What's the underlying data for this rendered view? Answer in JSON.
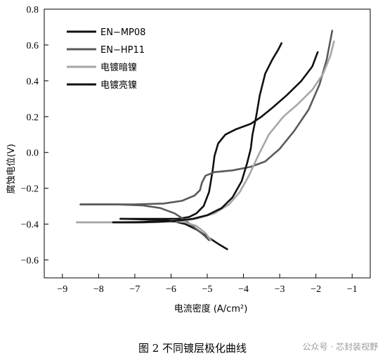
{
  "caption": "图 2    不同镀层极化曲线",
  "watermark": "公众号 · 芯封装视野",
  "chart_data": {
    "type": "line",
    "xlabel": "电流密度 (A/cm²)",
    "ylabel": "腐蚀电位(V)",
    "xlim": [
      -9.5,
      -0.5
    ],
    "ylim": [
      -0.7,
      0.8
    ],
    "xticks": [
      -9,
      -8,
      -7,
      -6,
      -5,
      -4,
      -3,
      -2,
      -1
    ],
    "yticks": [
      -0.6,
      -0.4,
      -0.2,
      0.0,
      0.2,
      0.4,
      0.6,
      0.8
    ],
    "xtick_labels": [
      "−9",
      "−8",
      "−7",
      "−6",
      "−5",
      "−4",
      "−3",
      "−2",
      "−1"
    ],
    "ytick_labels": [
      "−0.6",
      "−0.4",
      "−0.2",
      "0.0",
      "0.2",
      "0.4",
      "0.6",
      "0.8"
    ],
    "legend_position": "top-left",
    "series": [
      {
        "name": "EN−MP08",
        "color": "#111111",
        "width": 2.6,
        "anodic": [
          [
            -7.4,
            -0.37
          ],
          [
            -6.5,
            -0.37
          ],
          [
            -5.8,
            -0.37
          ],
          [
            -5.5,
            -0.36
          ],
          [
            -5.3,
            -0.34
          ],
          [
            -5.1,
            -0.3
          ],
          [
            -4.95,
            -0.22
          ],
          [
            -4.85,
            -0.1
          ],
          [
            -4.8,
            -0.02
          ],
          [
            -4.7,
            0.05
          ],
          [
            -4.5,
            0.1
          ],
          [
            -4.2,
            0.13
          ],
          [
            -3.8,
            0.16
          ],
          [
            -3.5,
            0.2
          ],
          [
            -3.2,
            0.25
          ],
          [
            -2.8,
            0.32
          ],
          [
            -2.4,
            0.4
          ],
          [
            -2.1,
            0.48
          ],
          [
            -1.95,
            0.56
          ]
        ],
        "cathodic": [
          [
            -7.4,
            -0.37
          ],
          [
            -6.5,
            -0.375
          ],
          [
            -6.0,
            -0.38
          ],
          [
            -5.6,
            -0.4
          ],
          [
            -5.3,
            -0.43
          ],
          [
            -5.0,
            -0.47
          ],
          [
            -4.7,
            -0.51
          ],
          [
            -4.45,
            -0.54
          ]
        ]
      },
      {
        "name": "EN−HP11",
        "color": "#5a5a5a",
        "width": 2.6,
        "anodic": [
          [
            -8.5,
            -0.29
          ],
          [
            -7.0,
            -0.29
          ],
          [
            -6.2,
            -0.285
          ],
          [
            -5.7,
            -0.27
          ],
          [
            -5.35,
            -0.24
          ],
          [
            -5.2,
            -0.21
          ],
          [
            -5.15,
            -0.17
          ],
          [
            -5.05,
            -0.13
          ],
          [
            -4.8,
            -0.11
          ],
          [
            -4.3,
            -0.1
          ],
          [
            -3.8,
            -0.08
          ],
          [
            -3.4,
            -0.05
          ],
          [
            -3.0,
            0.02
          ],
          [
            -2.6,
            0.12
          ],
          [
            -2.2,
            0.24
          ],
          [
            -1.9,
            0.38
          ],
          [
            -1.7,
            0.52
          ],
          [
            -1.55,
            0.68
          ]
        ],
        "cathodic": [
          [
            -8.5,
            -0.29
          ],
          [
            -7.5,
            -0.29
          ],
          [
            -6.8,
            -0.295
          ],
          [
            -6.3,
            -0.31
          ],
          [
            -5.9,
            -0.34
          ],
          [
            -5.6,
            -0.38
          ],
          [
            -5.35,
            -0.42
          ],
          [
            -5.1,
            -0.46
          ],
          [
            -4.95,
            -0.49
          ]
        ]
      },
      {
        "name": "电镀暗镍",
        "color": "#a6a6a6",
        "width": 2.6,
        "anodic": [
          [
            -8.6,
            -0.39
          ],
          [
            -7.5,
            -0.39
          ],
          [
            -6.5,
            -0.39
          ],
          [
            -5.8,
            -0.385
          ],
          [
            -5.3,
            -0.37
          ],
          [
            -4.8,
            -0.34
          ],
          [
            -4.4,
            -0.29
          ],
          [
            -4.1,
            -0.22
          ],
          [
            -3.85,
            -0.13
          ],
          [
            -3.6,
            -0.02
          ],
          [
            -3.3,
            0.1
          ],
          [
            -2.9,
            0.2
          ],
          [
            -2.5,
            0.27
          ],
          [
            -2.1,
            0.35
          ],
          [
            -1.8,
            0.44
          ],
          [
            -1.6,
            0.54
          ],
          [
            -1.5,
            0.62
          ]
        ],
        "cathodic": [
          [
            -8.6,
            -0.39
          ],
          [
            -7.5,
            -0.39
          ],
          [
            -6.6,
            -0.385
          ],
          [
            -6.0,
            -0.38
          ],
          [
            -5.6,
            -0.39
          ],
          [
            -5.3,
            -0.41
          ],
          [
            -5.05,
            -0.45
          ],
          [
            -4.9,
            -0.49
          ]
        ]
      },
      {
        "name": "电镀亮镍",
        "color": "#111111",
        "width": 2.6,
        "anodic": [
          [
            -7.6,
            -0.39
          ],
          [
            -6.8,
            -0.39
          ],
          [
            -6.2,
            -0.385
          ],
          [
            -5.8,
            -0.38
          ],
          [
            -5.4,
            -0.37
          ],
          [
            -5.0,
            -0.35
          ],
          [
            -4.6,
            -0.31
          ],
          [
            -4.3,
            -0.25
          ],
          [
            -4.05,
            -0.16
          ],
          [
            -3.9,
            -0.06
          ],
          [
            -3.8,
            0.02
          ],
          [
            -3.75,
            0.1
          ],
          [
            -3.65,
            0.2
          ],
          [
            -3.55,
            0.32
          ],
          [
            -3.4,
            0.44
          ],
          [
            -3.2,
            0.52
          ],
          [
            -3.05,
            0.57
          ],
          [
            -2.95,
            0.61
          ]
        ],
        "cathodic": [
          [
            -7.6,
            -0.39
          ],
          [
            -7.0,
            -0.39
          ],
          [
            -6.5,
            -0.385
          ],
          [
            -6.1,
            -0.38
          ],
          [
            -5.9,
            -0.385
          ]
        ]
      }
    ]
  }
}
